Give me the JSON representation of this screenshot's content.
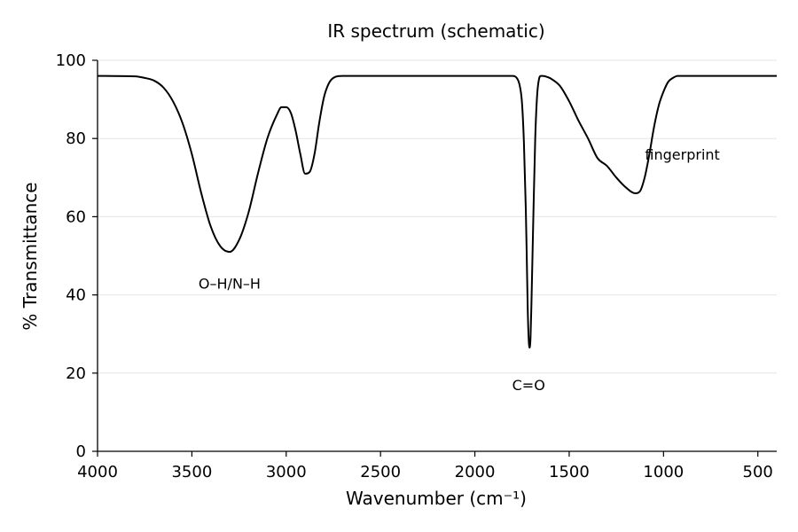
{
  "chart_data": {
    "type": "line",
    "title": "IR spectrum (schematic)",
    "xlabel": "Wavenumber (cm⁻¹)",
    "ylabel": "% Transmittance",
    "xlim": [
      4000,
      400
    ],
    "x_reversed": true,
    "ylim": [
      0,
      100
    ],
    "x_ticks": [
      4000,
      3500,
      3000,
      2500,
      2000,
      1500,
      1000,
      500
    ],
    "y_ticks": [
      0,
      20,
      40,
      60,
      80,
      100
    ],
    "grid": "horizontal",
    "line_color": "#000000",
    "series": [
      {
        "x": [
          4000,
          3800,
          3750,
          3700,
          3650,
          3600,
          3550,
          3500,
          3450,
          3400,
          3350,
          3300,
          3250,
          3200,
          3150,
          3100,
          3050,
          3025,
          3000,
          2975,
          2950,
          2925,
          2900,
          2875,
          2850,
          2825,
          2800,
          2775,
          2750,
          2700,
          2650,
          2500,
          2000,
          1800,
          1780,
          1760,
          1750,
          1740,
          1730,
          1725,
          1720,
          1715,
          1710,
          1705,
          1700,
          1690,
          1680,
          1670,
          1660,
          1650,
          1640,
          1620,
          1600,
          1550,
          1500,
          1450,
          1400,
          1350,
          1300,
          1250,
          1200,
          1150,
          1125,
          1100,
          1075,
          1050,
          1025,
          1000,
          975,
          950,
          925,
          900,
          850,
          800,
          700,
          600,
          500,
          400
        ],
        "y": [
          96,
          95.9,
          95.5,
          94.8,
          93,
          89.5,
          84,
          76,
          66,
          57.5,
          52.5,
          51,
          54,
          61,
          71,
          80,
          86,
          88,
          88,
          86.5,
          82,
          76,
          71,
          71.5,
          76,
          84,
          90.5,
          94,
          95.5,
          96,
          96,
          96,
          96,
          96,
          95.6,
          93,
          89,
          79,
          62,
          50,
          37,
          29,
          26.5,
          29,
          38,
          60,
          80,
          91,
          95.2,
          96,
          96,
          95.8,
          95.4,
          93.5,
          89.5,
          84.5,
          80,
          75,
          73,
          70,
          67.5,
          66,
          66.5,
          70,
          76,
          83,
          88.5,
          92,
          94.5,
          95.5,
          96,
          96,
          96,
          96,
          96,
          96,
          96,
          96
        ]
      }
    ],
    "annotations": [
      {
        "text": "O–H/N–H",
        "x": 3300,
        "y": 43
      },
      {
        "text": "C=O",
        "x": 1715,
        "y": 17
      },
      {
        "text": "fingerprint",
        "x": 900,
        "y": 76
      }
    ]
  }
}
